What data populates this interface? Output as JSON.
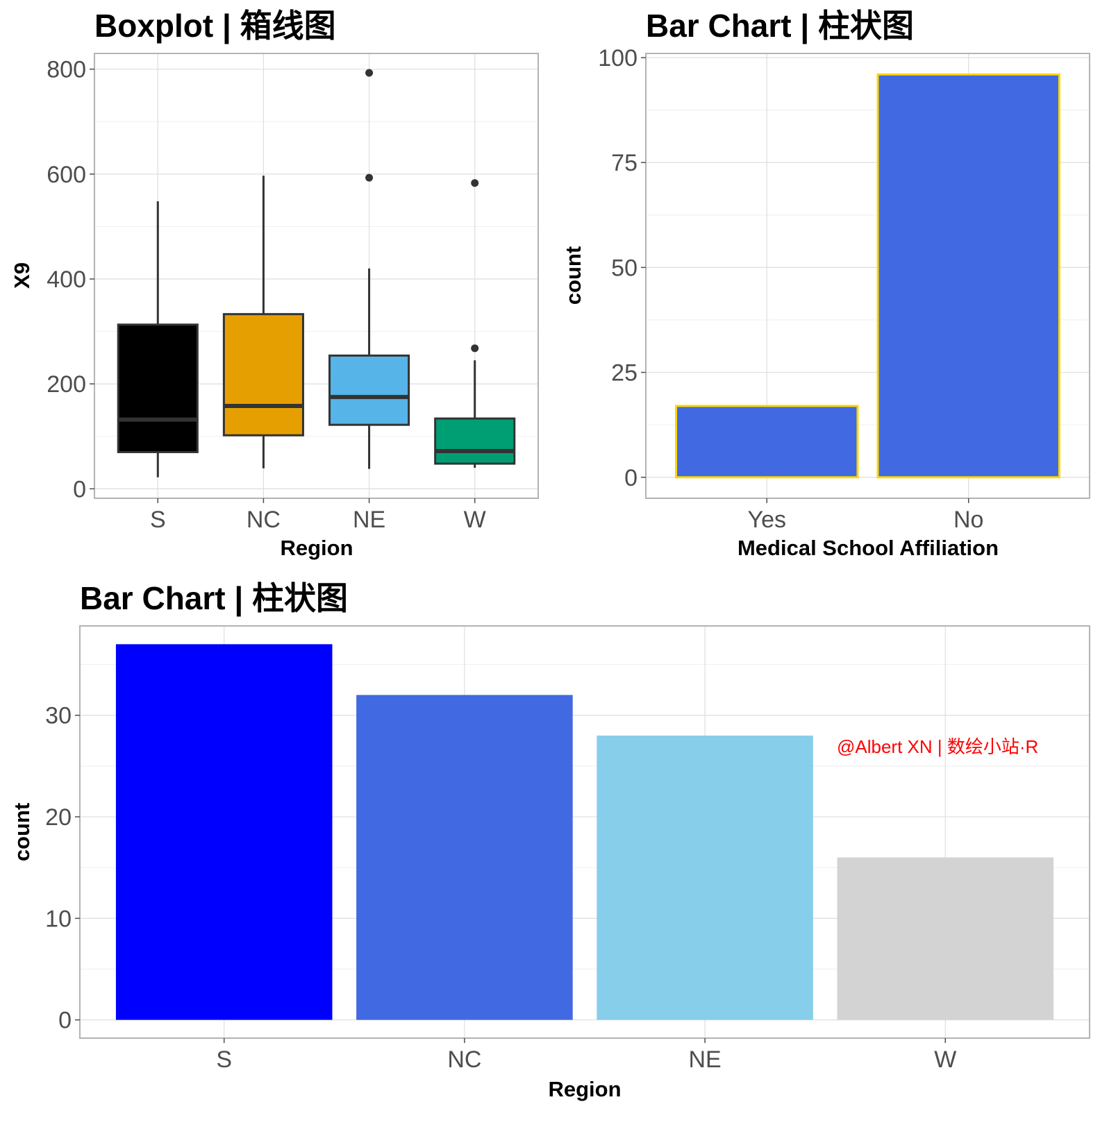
{
  "colors": {
    "box_fills": [
      "#000000",
      "#E69F00",
      "#56B4E9",
      "#009E73"
    ],
    "box_outline": "#333333",
    "bar2_fill": "#4169E1",
    "bar2_outline": "#FFD700",
    "bar3_fills": [
      "#0000FF",
      "#4169E1",
      "#87CEEB",
      "#D3D3D3"
    ],
    "watermark": "#FF0000"
  },
  "watermark": "@Albert XN | 数绘小站·R",
  "chart_data": [
    {
      "type": "box",
      "title": "Boxplot | 箱线图",
      "xlabel": "Region",
      "ylabel": "X9",
      "ylim": [
        -18,
        830
      ],
      "yticks": [
        0,
        200,
        400,
        600,
        800
      ],
      "ytick_labels": [
        "0",
        "200",
        "400",
        "600",
        "800"
      ],
      "categories": [
        "S",
        "NC",
        "NE",
        "W"
      ],
      "boxes": [
        {
          "category": "S",
          "whisker_low": 22,
          "q1": 70,
          "median": 132,
          "q3": 313,
          "whisker_high": 548,
          "outliers": []
        },
        {
          "category": "NC",
          "whisker_low": 39,
          "q1": 102,
          "median": 158,
          "q3": 333,
          "whisker_high": 597,
          "outliers": []
        },
        {
          "category": "NE",
          "whisker_low": 38,
          "q1": 122,
          "median": 175,
          "q3": 254,
          "whisker_high": 420,
          "outliers": [
            593,
            793
          ]
        },
        {
          "category": "W",
          "whisker_low": 40,
          "q1": 48,
          "median": 72,
          "q3": 134,
          "whisker_high": 245,
          "outliers": [
            268,
            583
          ]
        }
      ],
      "grid": true,
      "legend": "none"
    },
    {
      "type": "bar",
      "title": "Bar Chart | 柱状图",
      "xlabel": "Medical School Affiliation",
      "ylabel": "count",
      "ylim": [
        -5,
        101
      ],
      "yticks": [
        0,
        25,
        50,
        75,
        100
      ],
      "ytick_labels": [
        "0",
        "25",
        "50",
        "75",
        "100"
      ],
      "categories": [
        "Yes",
        "No"
      ],
      "values": [
        17,
        96
      ],
      "grid": true,
      "legend": "none"
    },
    {
      "type": "bar",
      "title": "Bar Chart | 柱状图",
      "xlabel": "Region",
      "ylabel": "count",
      "ylim": [
        -1.8,
        38.8
      ],
      "yticks": [
        0,
        10,
        20,
        30
      ],
      "ytick_labels": [
        "0",
        "10",
        "20",
        "30"
      ],
      "categories": [
        "S",
        "NC",
        "NE",
        "W"
      ],
      "values": [
        37,
        32,
        28,
        16
      ],
      "grid": true,
      "legend": "none"
    }
  ]
}
